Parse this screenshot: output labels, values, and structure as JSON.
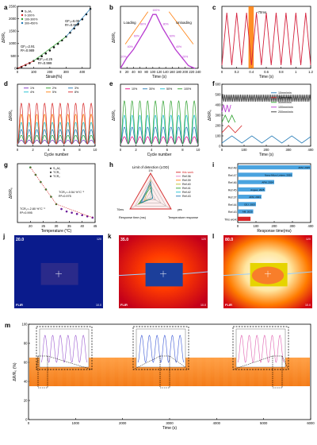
{
  "figure": {
    "panel_letters": [
      "a",
      "b",
      "c",
      "d",
      "e",
      "f",
      "g",
      "h",
      "i",
      "j",
      "k",
      "l",
      "m"
    ]
  },
  "colors": {
    "axis": "#000000",
    "c_red": "#d62728",
    "c_orange": "#ff7f0e",
    "purple": "#b83bd1",
    "green": "#2ca02c",
    "blue": "#1f77b4",
    "magenta": "#e6007e",
    "dark_red": "#d4213d",
    "gray": "#666666"
  },
  "chart_data": [
    {
      "panel": "a",
      "type": "scatter",
      "xlabel": "Strain(%)",
      "ylabel": "ΔR/R₀",
      "xlim": [
        0,
        450
      ],
      "ylim": [
        0,
        2500
      ],
      "xticks": [
        0,
        100,
        200,
        300,
        400
      ],
      "yticks": [
        0,
        500,
        1000,
        1500,
        2000,
        2500
      ],
      "legend": [
        "S₁₂M₂",
        "0-100%",
        "100-300%",
        "300-450%"
      ],
      "annotations": [
        "GF₁=2.91",
        "R²=0.989",
        "GF₂=4.25",
        "R²=0.999",
        "GF₃=6.00",
        "R²=0.999"
      ],
      "x": [
        0,
        25,
        50,
        75,
        100,
        125,
        150,
        175,
        200,
        225,
        250,
        275,
        300,
        325,
        350,
        375,
        400,
        425,
        450
      ],
      "y": [
        0,
        60,
        130,
        210,
        300,
        390,
        490,
        600,
        720,
        850,
        990,
        1130,
        1280,
        1440,
        1610,
        1790,
        1980,
        2180,
        2400
      ]
    },
    {
      "panel": "b",
      "type": "line",
      "xlabel": "Time (s)",
      "ylabel": "ΔR/R₀",
      "xlim": [
        0,
        240
      ],
      "xticks": [
        0,
        20,
        40,
        60,
        80,
        100,
        120,
        140,
        160,
        180,
        200,
        220,
        240
      ],
      "labels": [
        "Loading",
        "Unloading",
        "20%",
        "40%",
        "60%",
        "80%",
        "100%",
        "80%",
        "60%",
        "40%",
        "20%"
      ],
      "x": [
        0,
        20,
        40,
        60,
        80,
        100,
        110,
        130,
        150,
        170,
        190,
        210,
        230
      ],
      "y": [
        0,
        0.2,
        0.35,
        0.55,
        0.75,
        1.0,
        1.0,
        0.75,
        0.55,
        0.35,
        0.2,
        0.05,
        0
      ]
    },
    {
      "panel": "c",
      "type": "line",
      "xlabel": "Time (s)",
      "ylabel": "",
      "xlim": [
        0,
        1.2
      ],
      "xticks": [
        0.0,
        0.2,
        0.4,
        0.6,
        0.8,
        1.0,
        1.2
      ],
      "annotation": "~70ms",
      "cycles": 9
    },
    {
      "panel": "d",
      "type": "line",
      "xlabel": "Cycle number",
      "ylabel": "ΔR/R₀",
      "xlim": [
        0,
        10
      ],
      "xticks": [
        0,
        2,
        4,
        6,
        8,
        10
      ],
      "series": [
        {
          "name": "1%",
          "amplitude": 0.08
        },
        {
          "name": "2%",
          "amplitude": 0.18
        },
        {
          "name": "3%",
          "amplitude": 0.3
        },
        {
          "name": "4%",
          "amplitude": 0.45
        },
        {
          "name": "5%",
          "amplitude": 0.62
        },
        {
          "name": "8%",
          "amplitude": 0.85
        }
      ],
      "cycles": 10
    },
    {
      "panel": "e",
      "type": "line",
      "xlabel": "Cycle number",
      "ylabel": "ΔR/R₀",
      "xlim": [
        0,
        10
      ],
      "xticks": [
        0,
        2,
        4,
        6,
        8,
        10
      ],
      "series": [
        {
          "name": "10%",
          "amplitude": 0.15
        },
        {
          "name": "30%",
          "amplitude": 0.35
        },
        {
          "name": "50%",
          "amplitude": 0.6
        },
        {
          "name": "100%",
          "amplitude": 0.9
        }
      ],
      "cycles": 10
    },
    {
      "panel": "f",
      "type": "line",
      "xlabel": "Time (s)",
      "ylabel": "ΔR/R₀",
      "xlim": [
        0,
        400
      ],
      "ylim": [
        0,
        600
      ],
      "xticks": [
        0,
        100,
        200,
        300,
        400
      ],
      "yticks": [
        0,
        100,
        200,
        300,
        400,
        500,
        600
      ],
      "series": [
        {
          "name": "10mm/min"
        },
        {
          "name": "30mm/min"
        },
        {
          "name": "50mm/min"
        },
        {
          "name": "100mm/min"
        },
        {
          "name": "200mm/min"
        }
      ]
    },
    {
      "panel": "g",
      "type": "scatter",
      "xlabel": "Temperature (°C)",
      "ylabel": "ΔR/R₀",
      "xlim": [
        15,
        45
      ],
      "xticks": [
        20,
        25,
        30,
        35,
        40,
        45
      ],
      "legend": [
        "S₁₂M₂",
        "TCR₁",
        "TCR₂"
      ],
      "annotations": [
        "TCR₁=-2.80 %°C⁻¹",
        "R²=0.995",
        "TCR₂=-0.54 %°C⁻¹",
        "R²=0.975"
      ],
      "x": [
        20,
        22,
        24,
        26,
        28,
        30,
        32,
        34,
        36,
        38,
        40,
        42,
        44
      ],
      "y": [
        0,
        -0.06,
        -0.12,
        -0.18,
        -0.24,
        -0.3,
        -0.34,
        -0.36,
        -0.37,
        -0.38,
        -0.39,
        -0.4,
        -0.41
      ]
    },
    {
      "panel": "h",
      "type": "radar",
      "title": "Limit of detection (LOD)",
      "axes_labels": [
        "Response time (ms)",
        "Temperature response"
      ],
      "tick_labels": [
        "1%",
        "70ms",
        "yes"
      ],
      "legend": [
        "this work",
        "Ref.36",
        "Ref.39",
        "Ref.40",
        "Ref.41",
        "Ref.42",
        "Ref.43"
      ]
    },
    {
      "panel": "i",
      "type": "bar",
      "xlabel": "Response time(ms)",
      "xlim": [
        0,
        400
      ],
      "xticks": [
        0,
        100,
        200,
        300,
        400
      ],
      "categories": [
        "Ref.48",
        "Ref.47",
        "Ref.46",
        "Ref.45",
        "Ref.37",
        "Ref.44",
        "Ref.43",
        "This work"
      ],
      "bar_labels": [
        "AFM, 2025",
        "Nano-Micro Letters, 2025",
        "AFM, 2024",
        "Angew, 2025",
        "AFM, 2023",
        "CEJ, 2023",
        "AM, 2020",
        "This work"
      ],
      "values": [
        400,
        300,
        200,
        150,
        130,
        100,
        85,
        70
      ]
    },
    {
      "panel": "j",
      "type": "heatmap",
      "readouts": [
        "20.0",
        "120",
        "10.0"
      ],
      "brand": "FLIR"
    },
    {
      "panel": "k",
      "type": "heatmap",
      "readouts": [
        "35.0",
        "120",
        "10.0"
      ],
      "brand": "FLIR"
    },
    {
      "panel": "l",
      "type": "heatmap",
      "readouts": [
        "80.0",
        "120",
        "10.0"
      ],
      "brand": "FLIR"
    },
    {
      "panel": "m",
      "type": "line",
      "xlabel": "Time (s)",
      "ylabel": "ΔR/R₀ (%)",
      "xlim": [
        0,
        6000
      ],
      "ylim": [
        0,
        100
      ],
      "xticks": [
        0,
        1000,
        2000,
        3000,
        4000,
        5000,
        6000
      ],
      "yticks": [
        0,
        20,
        40,
        60,
        80,
        100
      ],
      "band": [
        35,
        65
      ]
    }
  ]
}
